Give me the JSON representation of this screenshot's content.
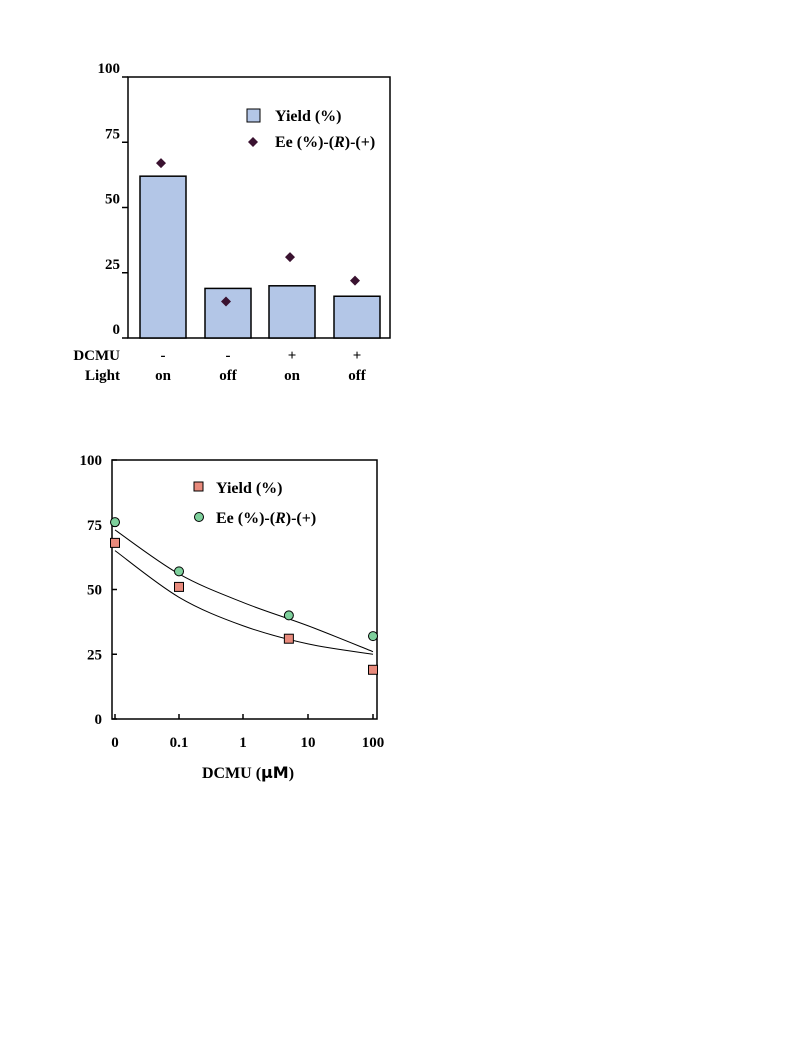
{
  "chart_data": [
    {
      "type": "bar",
      "categories": [
        "on",
        "off",
        "on",
        "off"
      ],
      "category_rows": [
        {
          "label": "DCMU",
          "values": [
            "-",
            "-",
            "+",
            "+"
          ]
        },
        {
          "label": "Light",
          "values": [
            "on",
            "off",
            "on",
            "off"
          ]
        }
      ],
      "series": [
        {
          "name": "Yield (%)",
          "kind": "bar",
          "values": [
            62,
            19,
            20,
            16
          ],
          "color": "#b3c6e7"
        },
        {
          "name": "Ee (%)-(R)-(+)",
          "kind": "marker",
          "marker": "diamond",
          "values": [
            67,
            14,
            31,
            22
          ],
          "color": "#3a1230"
        }
      ],
      "ylim": [
        0,
        100
      ],
      "yticks": [
        "0",
        "25",
        "50",
        "75",
        "100"
      ],
      "ytick_values": [
        0,
        25,
        50,
        75,
        100
      ],
      "grid": false,
      "legend": "top-right"
    },
    {
      "type": "scatter",
      "xlabel": "DCMU (μM)",
      "xscale": "log",
      "xticks": [
        "0",
        "0.1",
        "1",
        "10",
        "100"
      ],
      "series": [
        {
          "name": "Yield (%)",
          "marker": "square",
          "color": "#e88a7c",
          "x": [
            "0",
            "0.1",
            "5",
            "100"
          ],
          "y": [
            68,
            51,
            31,
            19
          ]
        },
        {
          "name": "Ee (%)-(R)-(+)",
          "marker": "circle",
          "color": "#7ed09c",
          "x": [
            "0",
            "0.1",
            "5",
            "100"
          ],
          "y": [
            76,
            57,
            40,
            32
          ]
        }
      ],
      "trendlines": [
        {
          "series": "Yield (%)",
          "y_at_xticks": [
            65,
            47,
            36,
            29,
            25
          ]
        },
        {
          "series": "Ee (%)-(R)-(+)",
          "y_at_xticks": [
            73,
            56,
            45,
            36,
            26
          ]
        }
      ],
      "ylim": [
        0,
        100
      ],
      "yticks": [
        "0",
        "25",
        "50",
        "75",
        "100"
      ],
      "ytick_values": [
        0,
        25,
        50,
        75,
        100
      ],
      "grid": false,
      "legend": "top-center"
    }
  ]
}
